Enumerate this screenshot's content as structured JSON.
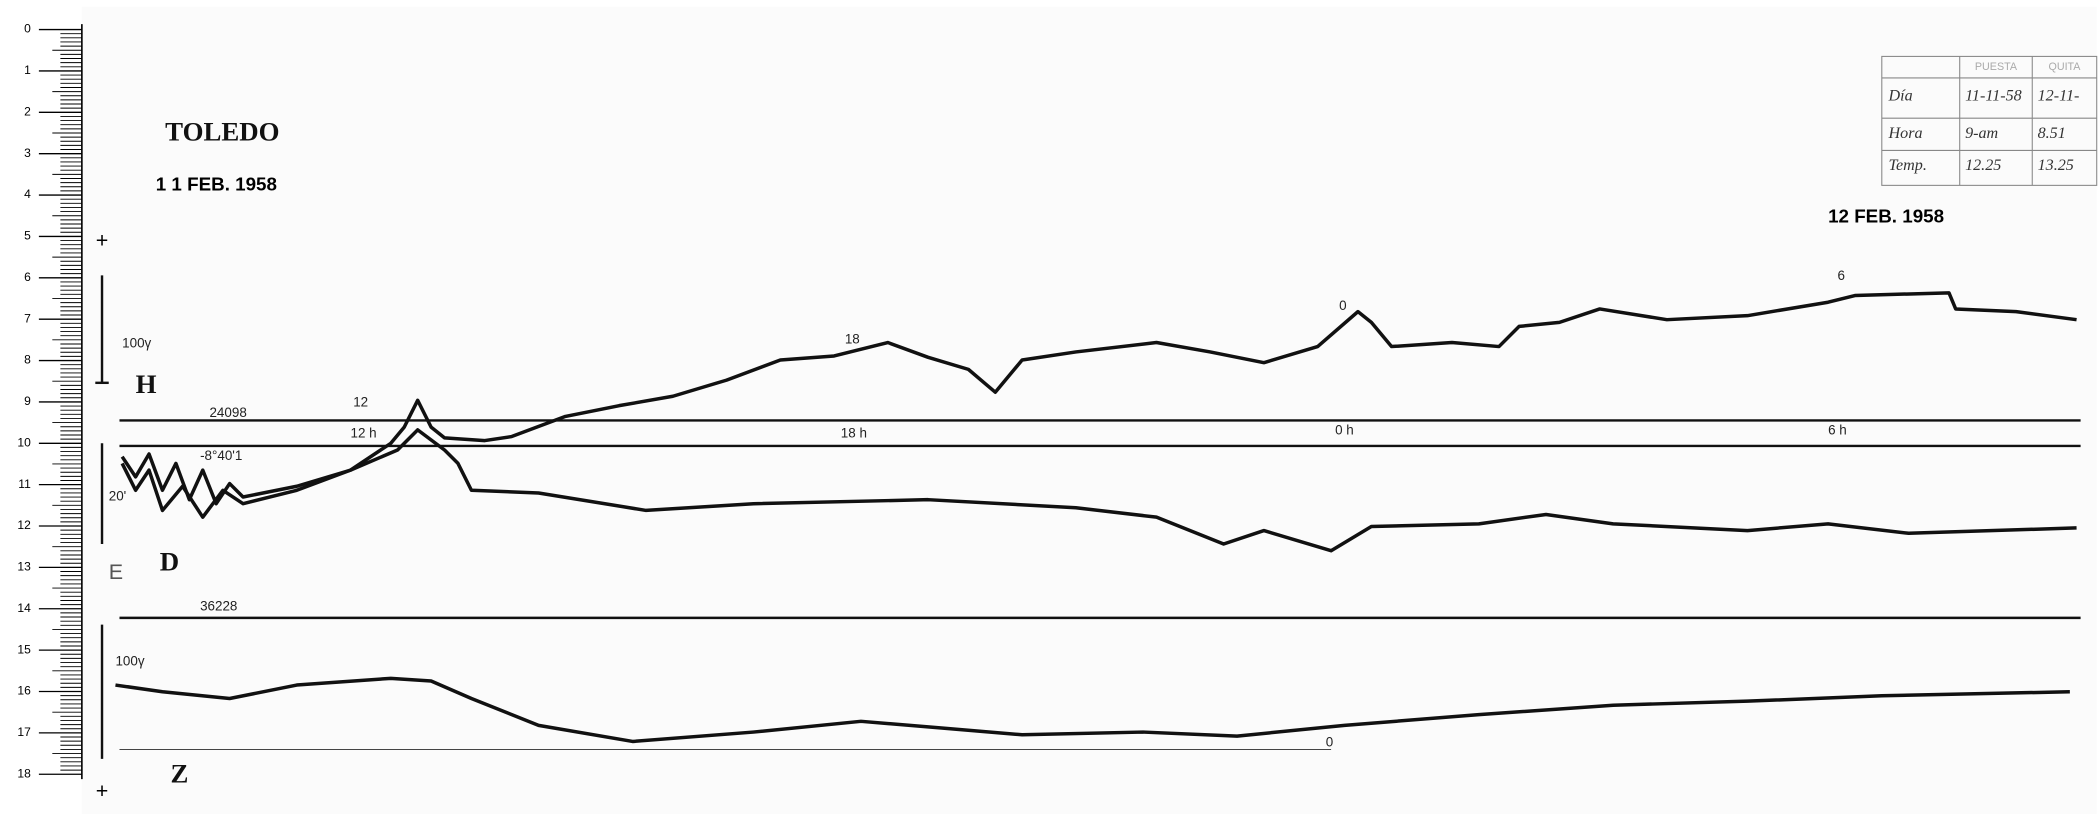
{
  "header": {
    "station": "TOLEDO",
    "start_date": "1 1 FEB. 1958",
    "end_date": "12 FEB. 1958"
  },
  "ruler": {
    "labels": [
      0,
      1,
      2,
      3,
      4,
      5,
      6,
      7,
      8,
      9,
      10,
      11,
      12,
      13,
      14,
      15,
      16,
      17,
      18
    ]
  },
  "components": {
    "h": "H",
    "d": "D",
    "z": "Z"
  },
  "scales": {
    "h": "100γ",
    "d": "20'",
    "z": "100γ",
    "plus_top": "+",
    "plus_bottom": "+",
    "e": "E"
  },
  "annotations": {
    "h_base": "24098",
    "z_base": "36228",
    "d_base": "-8°40'1",
    "h_12": "12",
    "h_18": "18",
    "h_0": "0",
    "h_6": "6",
    "t_12": "12 h",
    "t_18": "18 h",
    "t_0": "0 h",
    "t_6": "6 h",
    "z_0": "0"
  },
  "table": {
    "header": [
      "PUESTA",
      "QUITA"
    ],
    "rows": [
      [
        "Día",
        "11-11-58",
        "12-11-"
      ],
      [
        "Hora",
        "9-am",
        "8.51"
      ],
      [
        "Temp.",
        "12.25",
        "13.25"
      ]
    ]
  }
}
